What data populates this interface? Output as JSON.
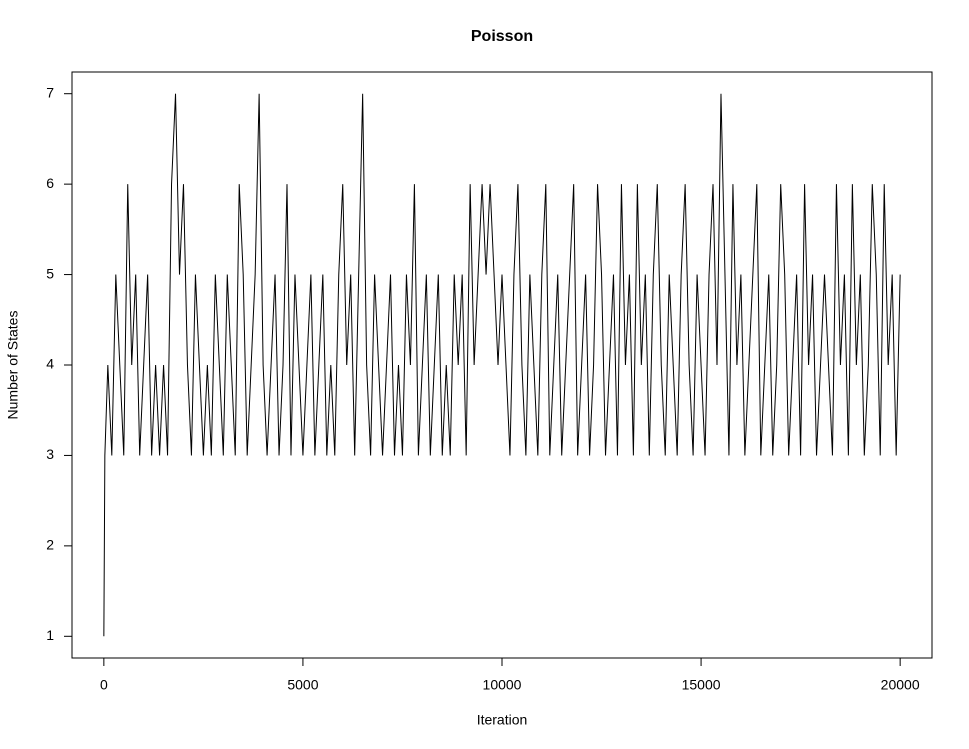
{
  "chart_data": {
    "type": "line",
    "title": "Poisson",
    "x_label": "Iteration",
    "y_label": "Number of States",
    "color": "#000000",
    "xlim": [
      -800,
      20800
    ],
    "xticks": [
      0,
      5000,
      10000,
      15000,
      20000
    ],
    "ylim": [
      0.76,
      7.24
    ],
    "yticks": [
      1,
      2,
      3,
      4,
      5,
      6,
      7
    ],
    "grid": false,
    "x": [
      0,
      25,
      100,
      200,
      300,
      400,
      500,
      600,
      700,
      800,
      900,
      1000,
      1100,
      1200,
      1300,
      1400,
      1500,
      1600,
      1700,
      1800,
      1900,
      2000,
      2100,
      2200,
      2300,
      2400,
      2500,
      2600,
      2700,
      2800,
      2900,
      3000,
      3100,
      3200,
      3300,
      3400,
      3500,
      3600,
      3700,
      3800,
      3900,
      4000,
      4100,
      4200,
      4300,
      4400,
      4500,
      4600,
      4700,
      4800,
      4900,
      5000,
      5100,
      5200,
      5300,
      5400,
      5500,
      5600,
      5700,
      5800,
      5900,
      6000,
      6100,
      6200,
      6300,
      6400,
      6500,
      6600,
      6700,
      6800,
      6900,
      7000,
      7100,
      7200,
      7300,
      7400,
      7500,
      7600,
      7700,
      7800,
      7900,
      8000,
      8100,
      8200,
      8300,
      8400,
      8500,
      8600,
      8700,
      8800,
      8900,
      9000,
      9100,
      9200,
      9300,
      9400,
      9500,
      9600,
      9700,
      9800,
      9900,
      10000,
      10100,
      10200,
      10300,
      10400,
      10500,
      10600,
      10700,
      10800,
      10900,
      11000,
      11100,
      11200,
      11300,
      11400,
      11500,
      11600,
      11700,
      11800,
      11900,
      12000,
      12100,
      12200,
      12300,
      12400,
      12500,
      12600,
      12700,
      12800,
      12900,
      13000,
      13100,
      13200,
      13300,
      13400,
      13500,
      13600,
      13700,
      13800,
      13900,
      14000,
      14100,
      14200,
      14300,
      14400,
      14500,
      14600,
      14700,
      14800,
      14900,
      15000,
      15100,
      15200,
      15300,
      15400,
      15500,
      15600,
      15700,
      15800,
      15900,
      16000,
      16100,
      16200,
      16300,
      16400,
      16500,
      16600,
      16700,
      16800,
      16900,
      17000,
      17100,
      17200,
      17300,
      17400,
      17500,
      17600,
      17700,
      17800,
      17900,
      18000,
      18100,
      18200,
      18300,
      18400,
      18500,
      18600,
      18700,
      18800,
      18900,
      19000,
      19100,
      19200,
      19300,
      19400,
      19500,
      19600,
      19700,
      19800,
      19900,
      20000
    ],
    "values": [
      1,
      3,
      4,
      3,
      5,
      4,
      3,
      6,
      4,
      5,
      3,
      4,
      5,
      3,
      4,
      3,
      4,
      3,
      6,
      7,
      5,
      6,
      4,
      3,
      5,
      4,
      3,
      4,
      3,
      5,
      4,
      3,
      5,
      4,
      3,
      6,
      5,
      3,
      4,
      5,
      7,
      4,
      3,
      4,
      5,
      3,
      4,
      6,
      3,
      5,
      4,
      3,
      4,
      5,
      3,
      4,
      5,
      3,
      4,
      3,
      5,
      6,
      4,
      5,
      3,
      5,
      7,
      4,
      3,
      5,
      4,
      3,
      4,
      5,
      3,
      4,
      3,
      5,
      4,
      6,
      3,
      4,
      5,
      3,
      4,
      5,
      3,
      4,
      3,
      5,
      4,
      5,
      3,
      6,
      4,
      5,
      6,
      5,
      6,
      5,
      4,
      5,
      4,
      3,
      5,
      6,
      4,
      3,
      5,
      4,
      3,
      5,
      6,
      3,
      4,
      5,
      3,
      4,
      5,
      6,
      3,
      4,
      5,
      3,
      4,
      6,
      5,
      3,
      4,
      5,
      3,
      6,
      4,
      5,
      3,
      6,
      4,
      5,
      3,
      5,
      6,
      4,
      3,
      5,
      4,
      3,
      5,
      6,
      4,
      3,
      5,
      4,
      3,
      5,
      6,
      4,
      7,
      5,
      3,
      6,
      4,
      5,
      3,
      4,
      5,
      6,
      3,
      4,
      5,
      3,
      4,
      6,
      5,
      3,
      4,
      5,
      3,
      6,
      4,
      5,
      3,
      4,
      5,
      4,
      3,
      6,
      4,
      5,
      3,
      6,
      4,
      5,
      3,
      4,
      6,
      5,
      3,
      6,
      4,
      5,
      3,
      5
    ]
  }
}
